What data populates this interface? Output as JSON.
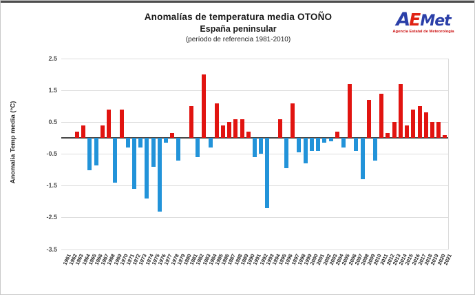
{
  "page": {
    "title": "Anomalías de temperatura media OTOÑO",
    "subtitle": "España peninsular",
    "reference": "(período de referencia 1981-2010)"
  },
  "logo": {
    "letter_a": "A",
    "letter_e": "E",
    "letters_met": "Met",
    "caption": "Agencia Estatal de Meteorología"
  },
  "chart_data": {
    "type": "bar",
    "title": "Anomalías de temperatura media OTOÑO — España peninsular (período de referencia 1981-2010)",
    "xlabel": "",
    "ylabel": "Anomalia Temp media (°C)",
    "ylim": [
      -3.5,
      2.5
    ],
    "yticks": [
      2.5,
      1.5,
      0.5,
      -0.5,
      -1.5,
      -2.5,
      -3.5
    ],
    "grid": true,
    "legend": "none",
    "colors": {
      "positive": "#e11410",
      "negative": "#2293d9"
    },
    "categories": [
      1961,
      1962,
      1963,
      1964,
      1965,
      1966,
      1967,
      1968,
      1969,
      1970,
      1971,
      1972,
      1973,
      1974,
      1975,
      1976,
      1977,
      1978,
      1979,
      1980,
      1981,
      1982,
      1983,
      1984,
      1985,
      1986,
      1987,
      1988,
      1989,
      1990,
      1991,
      1992,
      1993,
      1994,
      1995,
      1996,
      1997,
      1998,
      1999,
      2000,
      2001,
      2002,
      2003,
      2004,
      2005,
      2006,
      2007,
      2008,
      2009,
      2010,
      2011,
      2012,
      2013,
      2014,
      2015,
      2016,
      2017,
      2018,
      2019,
      2020,
      2021
    ],
    "values": [
      0.0,
      0.0,
      0.2,
      0.4,
      -1.0,
      -0.85,
      0.4,
      0.9,
      -1.4,
      0.9,
      -0.3,
      -1.6,
      -0.3,
      -1.9,
      -0.9,
      -2.3,
      -0.15,
      0.15,
      -0.7,
      0.0,
      1.0,
      -0.6,
      2.0,
      -0.3,
      1.1,
      0.4,
      0.5,
      0.6,
      0.6,
      0.2,
      -0.6,
      -0.5,
      -2.2,
      0.0,
      0.6,
      -0.95,
      1.1,
      -0.45,
      -0.8,
      -0.4,
      -0.4,
      -0.15,
      -0.1,
      0.2,
      -0.3,
      1.7,
      -0.4,
      -1.3,
      1.2,
      -0.7,
      1.4,
      0.15,
      0.5,
      1.7,
      0.4,
      0.9,
      1.0,
      0.8,
      0.5,
      0.5,
      0.1
    ]
  }
}
